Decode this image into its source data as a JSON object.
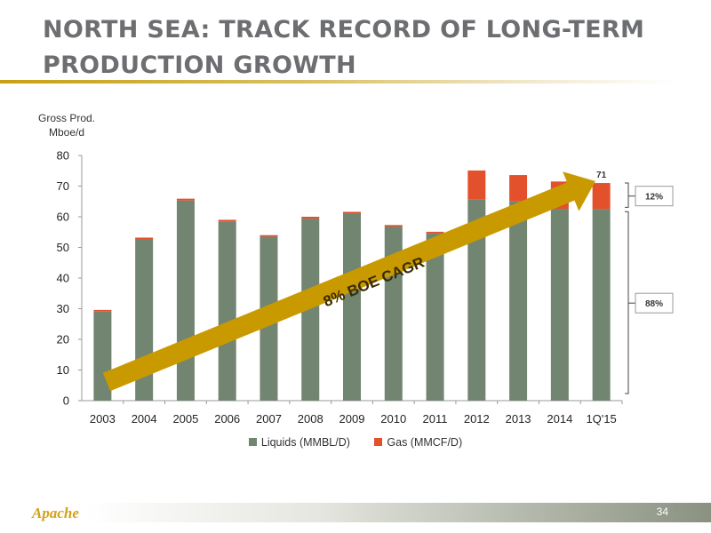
{
  "slide": {
    "title": "NORTH SEA: TRACK RECORD OF LONG-TERM PRODUCTION GROWTH",
    "page_number": "34",
    "logo_text": "Apache"
  },
  "colors": {
    "liquids": "#718571",
    "gas": "#e2512b",
    "arrow": "#c99a00",
    "title": "#6d6e71"
  },
  "chart_data": {
    "type": "bar",
    "stacked": true,
    "ylabel_lines": [
      "Gross Prod.",
      "Mboe/d"
    ],
    "xlabel": "",
    "ylim": [
      0,
      80
    ],
    "yticks": [
      0,
      10,
      20,
      30,
      40,
      50,
      60,
      70,
      80
    ],
    "categories": [
      "2003",
      "2004",
      "2005",
      "2006",
      "2007",
      "2008",
      "2009",
      "2010",
      "2011",
      "2012",
      "2013",
      "2014",
      "1Q'15"
    ],
    "series": [
      {
        "name": "Liquids (MMBL/D)",
        "color": "#718571",
        "values": [
          29.2,
          52.6,
          65.3,
          58.5,
          53.5,
          59.4,
          61.0,
          56.8,
          54.6,
          65.6,
          65.0,
          62.6,
          62.5
        ]
      },
      {
        "name": "Gas (MMCF/D)",
        "color": "#e2512b",
        "values": [
          0.4,
          0.6,
          0.6,
          0.5,
          0.5,
          0.6,
          0.6,
          0.5,
          0.5,
          9.5,
          8.6,
          8.9,
          8.5
        ]
      }
    ],
    "data_labels": [
      {
        "category": "1Q'15",
        "text": "71"
      }
    ],
    "annotations": {
      "arrow_text": "8% BOE CAGR",
      "bracket_gas": "12%",
      "bracket_liquids": "88%"
    },
    "legend_position": "bottom",
    "grid": false
  }
}
